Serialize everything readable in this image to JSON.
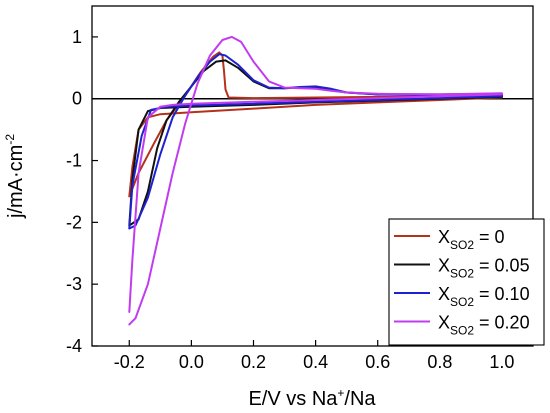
{
  "chart_data": {
    "type": "line",
    "xlabel": "E/V vs Na",
    "xlabel_sup": "+",
    "xlabel_tail": "/Na",
    "ylabel": "j/mA·cm",
    "ylabel_sup": "-2",
    "xlim": [
      -0.32,
      1.1
    ],
    "ylim": [
      -4,
      1.5
    ],
    "x_ticks": [
      -0.2,
      0.0,
      0.2,
      0.4,
      0.6,
      0.8,
      1.0
    ],
    "x_tick_labels": [
      "-0.2",
      "0.0",
      "0.2",
      "0.4",
      "0.6",
      "0.8",
      "1.0"
    ],
    "y_ticks": [
      1,
      0,
      -1,
      -2,
      -3,
      -4
    ],
    "y_tick_labels": [
      "1",
      "0",
      "-1",
      "-2",
      "-3",
      "-4"
    ],
    "grid": false,
    "zero_line": true,
    "legend_position": "bottom-right",
    "series": [
      {
        "name": "X",
        "name_sub": "SO2",
        "name_tail": " = 0",
        "color": "#b5321a",
        "x": [
          -0.2,
          -0.17,
          -0.12,
          -0.08,
          -0.02,
          0.03,
          0.07,
          0.09,
          0.1,
          0.105,
          0.11,
          0.12,
          0.2,
          0.4,
          0.6,
          0.8,
          1.0,
          1.0,
          0.8,
          0.6,
          0.4,
          0.2,
          0.0,
          -0.1,
          -0.14,
          -0.17,
          -0.19,
          -0.2
        ],
        "y": [
          -1.58,
          -1.2,
          -0.72,
          -0.35,
          0.05,
          0.43,
          0.68,
          0.75,
          0.7,
          0.45,
          0.15,
          0.02,
          0.01,
          0.02,
          0.03,
          0.04,
          0.05,
          0.02,
          -0.02,
          -0.06,
          -0.1,
          -0.16,
          -0.22,
          -0.25,
          -0.3,
          -0.5,
          -1.1,
          -1.58
        ]
      },
      {
        "name": "X",
        "name_sub": "SO2",
        "name_tail": " = 0.05",
        "color": "#111111",
        "x": [
          -0.2,
          -0.17,
          -0.14,
          -0.11,
          -0.08,
          -0.04,
          0.0,
          0.04,
          0.08,
          0.11,
          0.15,
          0.2,
          0.25,
          0.3,
          0.35,
          0.4,
          0.45,
          0.5,
          0.6,
          0.8,
          1.0,
          1.0,
          0.8,
          0.6,
          0.4,
          0.2,
          0.0,
          -0.1,
          -0.14,
          -0.17,
          -0.19,
          -0.2
        ],
        "y": [
          -2.05,
          -1.95,
          -1.5,
          -0.8,
          -0.35,
          -0.05,
          0.2,
          0.45,
          0.6,
          0.62,
          0.5,
          0.28,
          0.17,
          0.17,
          0.18,
          0.18,
          0.14,
          0.1,
          0.07,
          0.07,
          0.08,
          0.03,
          0.0,
          -0.03,
          -0.06,
          -0.1,
          -0.13,
          -0.15,
          -0.2,
          -0.5,
          -1.3,
          -2.05
        ]
      },
      {
        "name": "X",
        "name_sub": "SO2",
        "name_tail": " = 0.10",
        "color": "#1d22d0",
        "x": [
          -0.2,
          -0.18,
          -0.14,
          -0.1,
          -0.06,
          -0.02,
          0.02,
          0.06,
          0.09,
          0.11,
          0.15,
          0.2,
          0.25,
          0.3,
          0.35,
          0.4,
          0.45,
          0.5,
          0.6,
          0.8,
          1.0,
          1.0,
          0.8,
          0.6,
          0.4,
          0.2,
          0.0,
          -0.08,
          -0.13,
          -0.16,
          -0.19,
          -0.2
        ],
        "y": [
          -2.1,
          -2.05,
          -1.6,
          -0.9,
          -0.3,
          0.05,
          0.35,
          0.6,
          0.72,
          0.7,
          0.55,
          0.3,
          0.18,
          0.17,
          0.19,
          0.2,
          0.16,
          0.1,
          0.07,
          0.06,
          0.07,
          0.04,
          0.01,
          -0.02,
          -0.05,
          -0.08,
          -0.11,
          -0.13,
          -0.18,
          -0.6,
          -1.4,
          -2.1
        ]
      },
      {
        "name": "X",
        "name_sub": "SO2",
        "name_tail": " = 0.20",
        "color": "#c13cf0",
        "x": [
          -0.2,
          -0.18,
          -0.14,
          -0.1,
          -0.06,
          -0.02,
          0.02,
          0.06,
          0.1,
          0.13,
          0.16,
          0.2,
          0.25,
          0.3,
          0.35,
          0.4,
          0.45,
          0.5,
          0.6,
          0.8,
          1.0,
          1.0,
          0.8,
          0.6,
          0.4,
          0.2,
          0.0,
          -0.06,
          -0.1,
          -0.14,
          -0.17,
          -0.19,
          -0.2
        ],
        "y": [
          -3.65,
          -3.55,
          -3.0,
          -2.1,
          -1.2,
          -0.4,
          0.25,
          0.7,
          0.95,
          1.0,
          0.92,
          0.6,
          0.28,
          0.18,
          0.17,
          0.16,
          0.13,
          0.1,
          0.08,
          0.07,
          0.09,
          0.07,
          0.04,
          0.01,
          -0.02,
          -0.05,
          -0.08,
          -0.1,
          -0.13,
          -0.3,
          -1.2,
          -2.6,
          -3.45
        ]
      }
    ]
  }
}
